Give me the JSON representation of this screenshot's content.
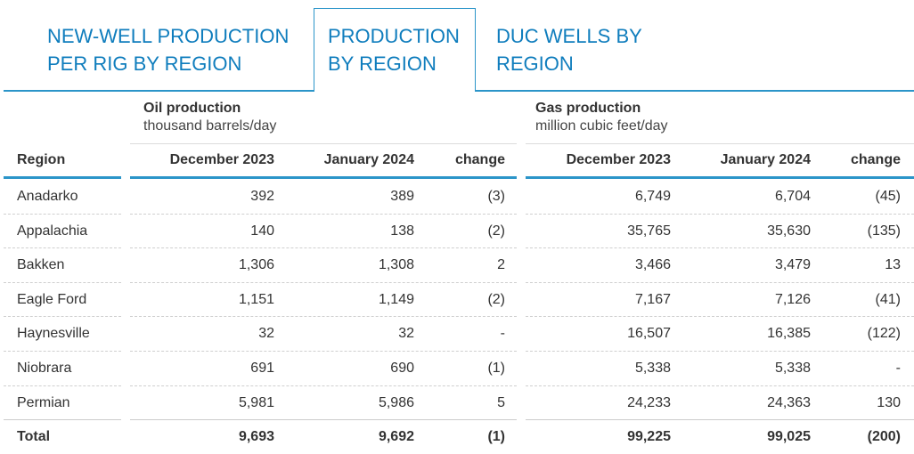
{
  "tabs": [
    {
      "line1": "NEW-WELL PRODUCTION",
      "line2": "PER RIG BY REGION"
    },
    {
      "line1": "PRODUCTION",
      "line2": "BY REGION"
    },
    {
      "line1": "DUC WELLS BY",
      "line2": "REGION"
    }
  ],
  "groups": {
    "oil": {
      "title": "Oil production",
      "unit": "thousand barrels/day"
    },
    "gas": {
      "title": "Gas production",
      "unit": "million cubic feet/day"
    }
  },
  "headers": {
    "region": "Region",
    "oil": [
      "December 2023",
      "January 2024",
      "change"
    ],
    "gas": [
      "December 2023",
      "January 2024",
      "change"
    ]
  },
  "rows": [
    {
      "region": "Anadarko",
      "oil": [
        "392",
        "389",
        "(3)"
      ],
      "gas": [
        "6,749",
        "6,704",
        "(45)"
      ]
    },
    {
      "region": "Appalachia",
      "oil": [
        "140",
        "138",
        "(2)"
      ],
      "gas": [
        "35,765",
        "35,630",
        "(135)"
      ]
    },
    {
      "region": "Bakken",
      "oil": [
        "1,306",
        "1,308",
        "2"
      ],
      "gas": [
        "3,466",
        "3,479",
        "13"
      ]
    },
    {
      "region": "Eagle Ford",
      "oil": [
        "1,151",
        "1,149",
        "(2)"
      ],
      "gas": [
        "7,167",
        "7,126",
        "(41)"
      ]
    },
    {
      "region": "Haynesville",
      "oil": [
        "32",
        "32",
        "-"
      ],
      "gas": [
        "16,507",
        "16,385",
        "(122)"
      ]
    },
    {
      "region": "Niobrara",
      "oil": [
        "691",
        "690",
        "(1)"
      ],
      "gas": [
        "5,338",
        "5,338",
        "-"
      ]
    },
    {
      "region": "Permian",
      "oil": [
        "5,981",
        "5,986",
        "5"
      ],
      "gas": [
        "24,233",
        "24,363",
        "130"
      ]
    }
  ],
  "total": {
    "region": "Total",
    "oil": [
      "9,693",
      "9,692",
      "(1)"
    ],
    "gas": [
      "99,225",
      "99,025",
      "(200)"
    ]
  }
}
